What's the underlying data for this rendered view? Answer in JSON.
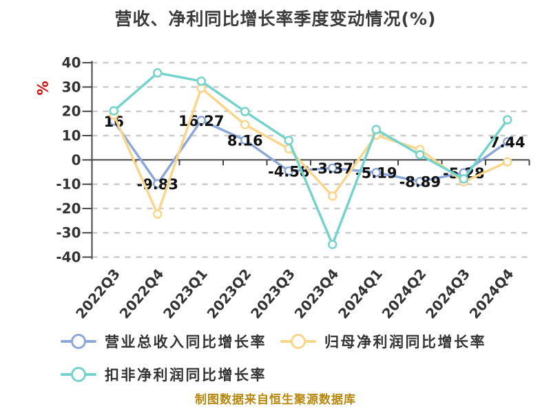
{
  "source_note": "制图数据来自恒生聚源数据库",
  "colors": {
    "revenue_series": "#8ca8da",
    "net_profit_series": "#fad68c",
    "deducted_profit_series": "#74d4cc",
    "grid": "#cccccc",
    "axis": "#444444",
    "tick_text": "#333333",
    "data_label": "#111111",
    "title": "#3b3b3b",
    "unit_label": "#d40f0f",
    "source_note": "#b8860b"
  },
  "chart_data": {
    "type": "line",
    "title": "营收、净利同比增长率季度变动情况(%)",
    "xlabel": "",
    "ylabel": "%",
    "ylim": [
      -40,
      40
    ],
    "y_ticks": [
      40,
      30,
      20,
      10,
      0,
      -10,
      -20,
      -30,
      -40
    ],
    "grid": "horizontal-dashed",
    "legend_position": "bottom-left",
    "categories": [
      "2022Q3",
      "2022Q4",
      "2023Q1",
      "2023Q2",
      "2023Q3",
      "2023Q4",
      "2024Q1",
      "2024Q2",
      "2024Q3",
      "2024Q4"
    ],
    "series": [
      {
        "name": "营业总收入同比增长率",
        "color": "#8ca8da",
        "values": [
          16,
          -9.83,
          16.27,
          8.16,
          -4.58,
          -3.37,
          -5.19,
          -8.89,
          -5.28,
          7.44
        ],
        "labels": [
          "16",
          "-9.83",
          "16.27",
          "8.16",
          "-4.58",
          "-3.37",
          "-5.19",
          "-8.89",
          "-5.28",
          "7.44"
        ],
        "show_labels": true
      },
      {
        "name": "归母净利润同比增长率",
        "color": "#fad68c",
        "values": [
          18.5,
          -22.3,
          29.5,
          14.5,
          4.6,
          -14.9,
          10.2,
          4.3,
          -9.0,
          -0.8
        ],
        "show_labels": false
      },
      {
        "name": "扣非净利润同比增长率",
        "color": "#74d4cc",
        "values": [
          20.2,
          35.8,
          32.4,
          19.9,
          8.0,
          -34.8,
          12.5,
          2.1,
          -7.8,
          16.5
        ],
        "show_labels": false
      }
    ]
  }
}
